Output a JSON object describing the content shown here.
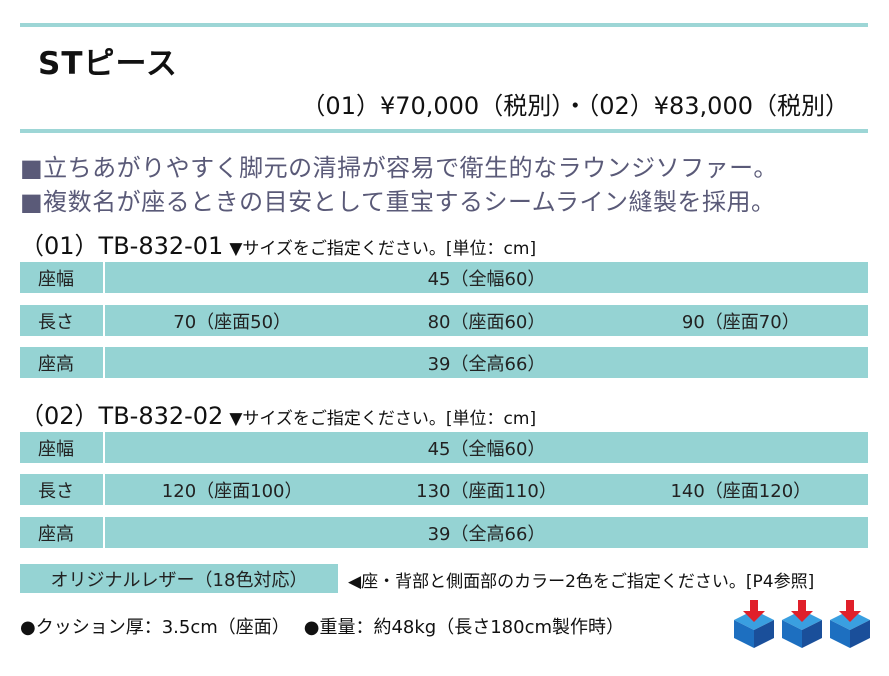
{
  "title": "STピース",
  "price": "（01）¥70,000（税別）・（02）¥83,000（税別）",
  "intro": [
    "■立ちあがりやすく脚元の清掃が容易で衛生的なラウンジソファー。",
    "■複数名が座るときの目安として重宝するシームライン縫製を採用。"
  ],
  "models": [
    {
      "name": "（01）TB-832-01",
      "hint": "▼サイズをご指定ください。[単位：cm]",
      "rows": [
        {
          "label": "座幅",
          "values": [
            "45（全幅60）"
          ]
        },
        {
          "label": "長さ",
          "values": [
            "70（座面50）",
            "80（座面60）",
            "90（座面70）"
          ]
        },
        {
          "label": "座高",
          "values": [
            "39（全高66）"
          ]
        }
      ]
    },
    {
      "name": "（02）TB-832-02",
      "hint": "▼サイズをご指定ください。[単位：cm]",
      "rows": [
        {
          "label": "座幅",
          "values": [
            "45（全幅60）"
          ]
        },
        {
          "label": "長さ",
          "values": [
            "120（座面100）",
            "130（座面110）",
            "140（座面120）"
          ]
        },
        {
          "label": "座高",
          "values": [
            "39（全高66）"
          ]
        }
      ]
    }
  ],
  "leather": {
    "label": "オリジナルレザー（18色対応）",
    "note": "◀座・背部と側面部のカラー2色をご指定ください。[P4参照]"
  },
  "specs": [
    "●クッション厚：3.5cm（座面）",
    "●重量：約48kg（長さ180cm製作時）"
  ],
  "icons": [
    "cube-arrow-icon",
    "cube-arrow-icon",
    "cube-arrow-icon"
  ],
  "colors": {
    "accent": "#9dd6d6",
    "table": "#95d3d3",
    "intro": "#5a5a78"
  }
}
